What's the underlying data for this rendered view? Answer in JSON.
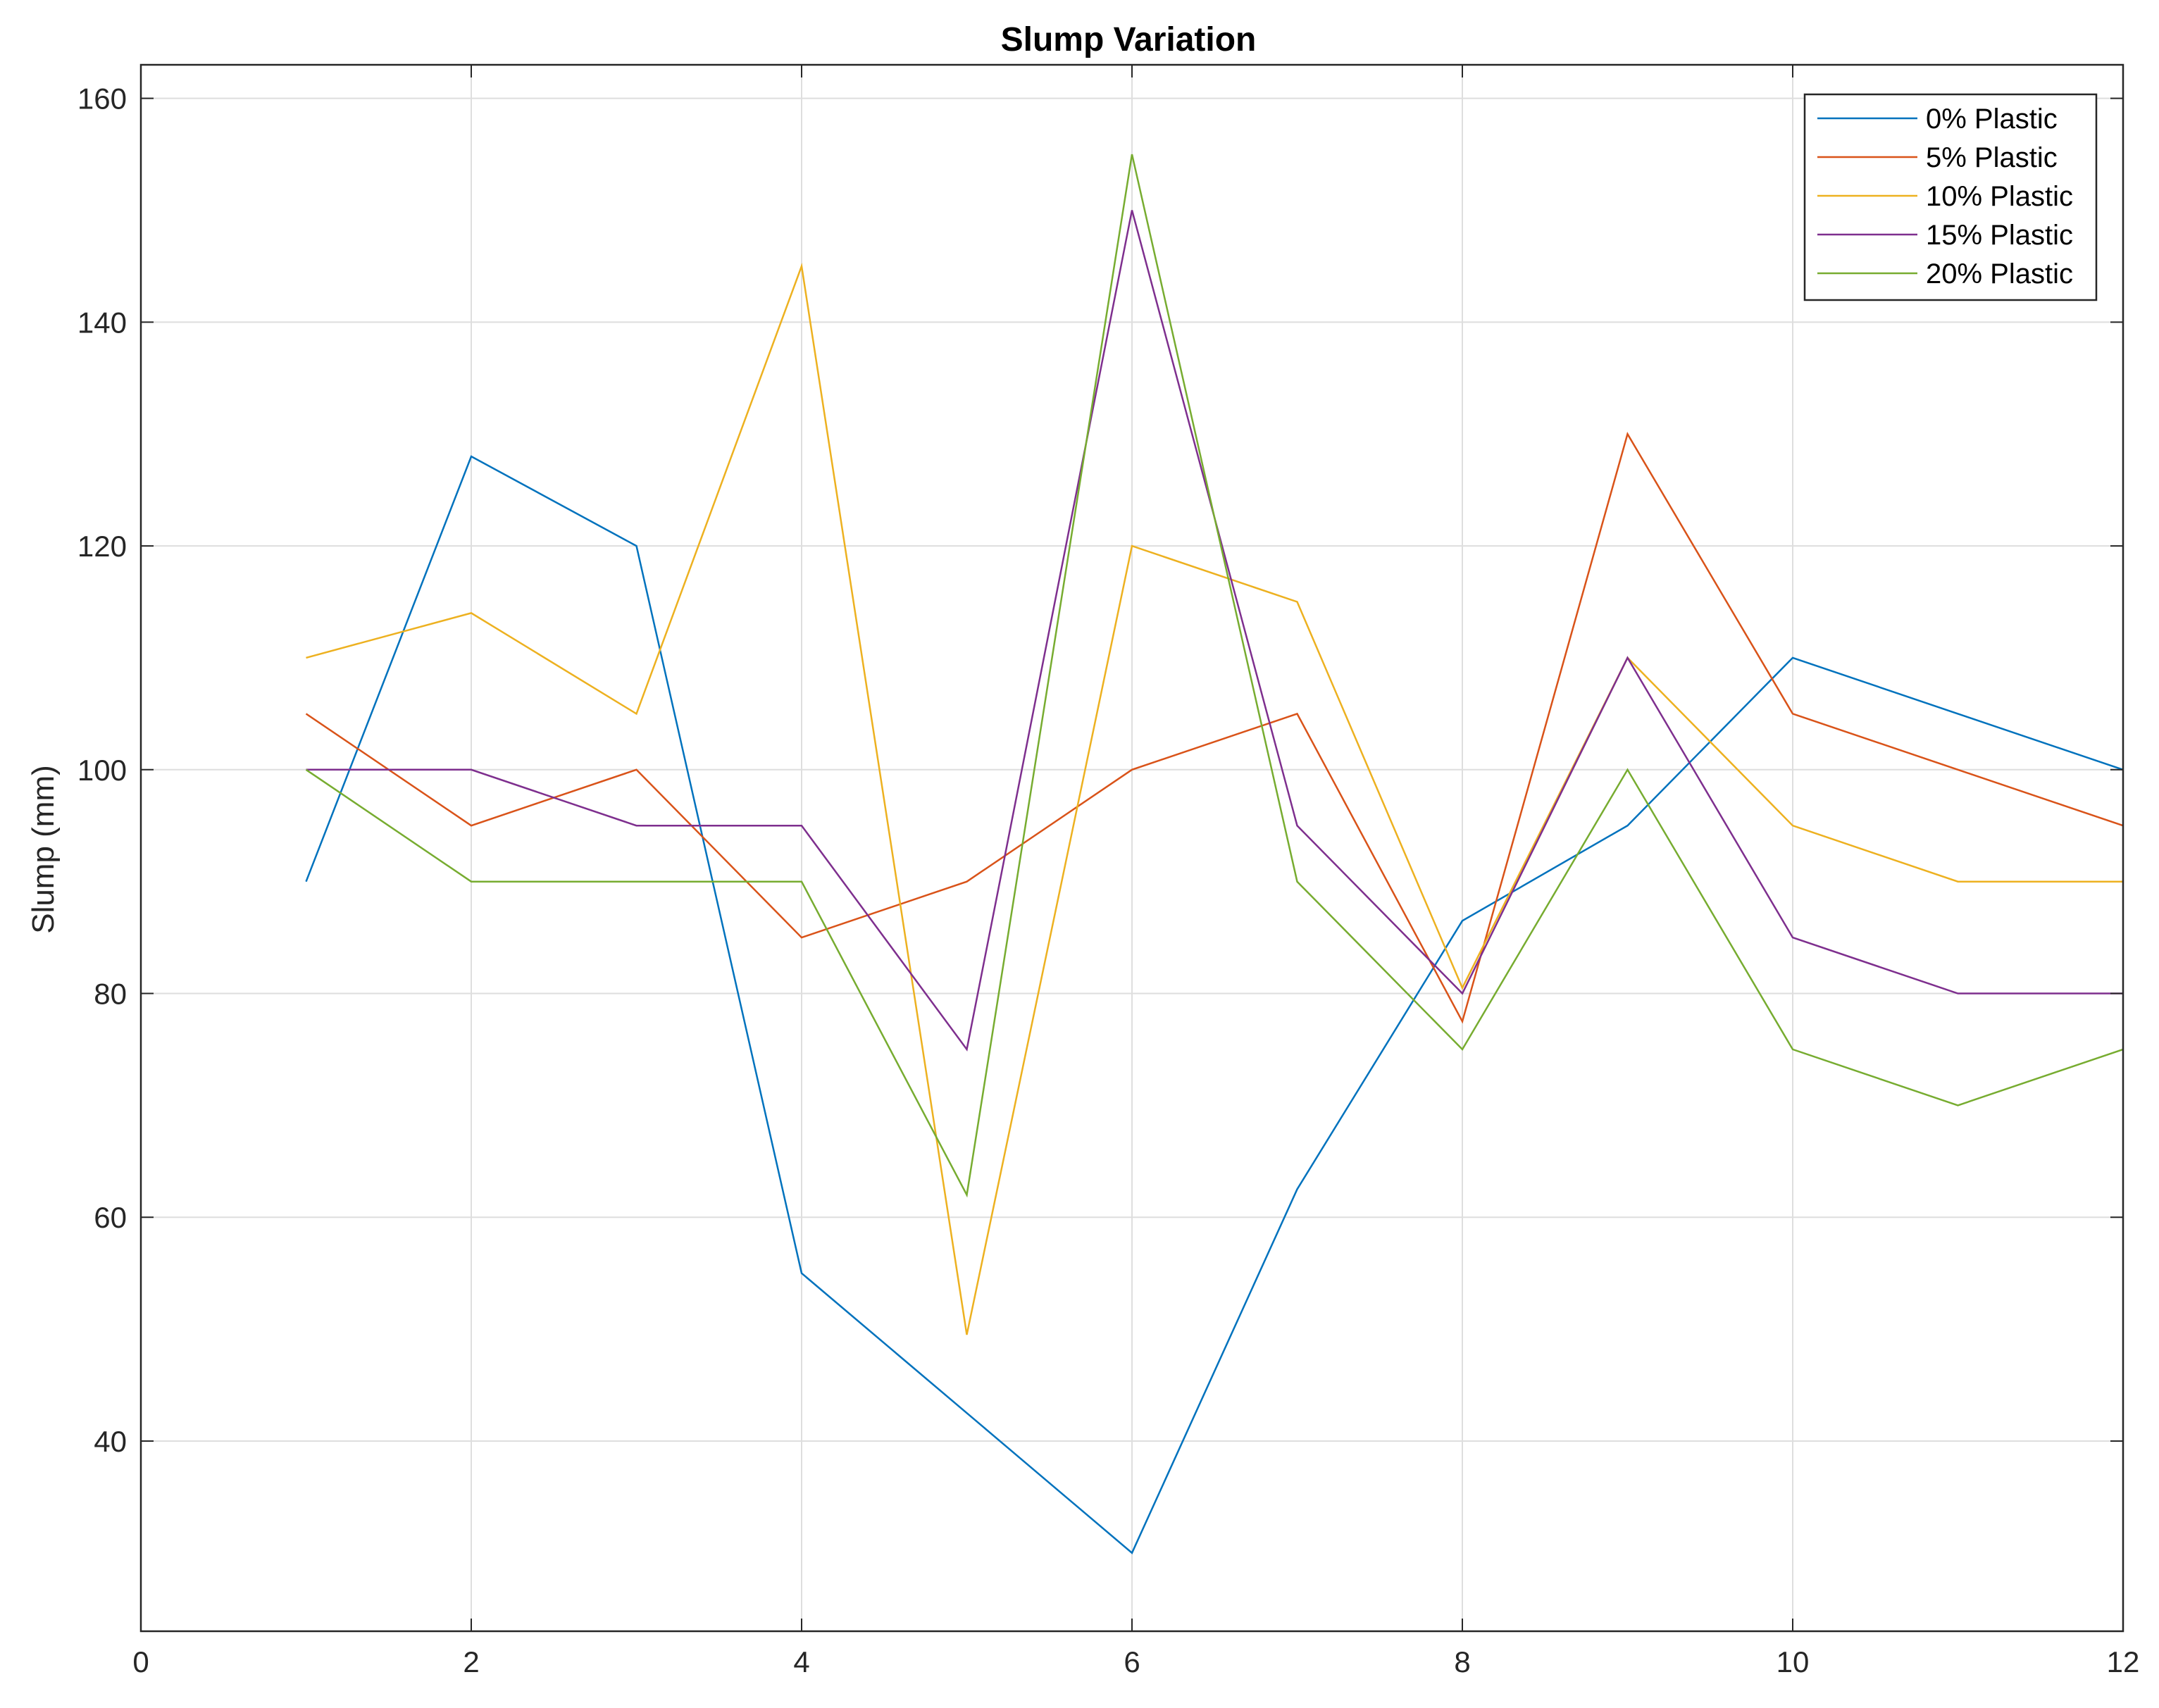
{
  "chart_data": {
    "type": "line",
    "title": "Slump Variation",
    "xlabel": "",
    "ylabel": "Slump (mm)",
    "xlim": [
      0,
      12
    ],
    "ylim": [
      23,
      163
    ],
    "xticks": [
      0,
      2,
      4,
      6,
      8,
      10,
      12
    ],
    "yticks": [
      40,
      60,
      80,
      100,
      120,
      140,
      160
    ],
    "grid": true,
    "legend_position": "top-right",
    "x": [
      1,
      2,
      3,
      4,
      5,
      6,
      7,
      8,
      9,
      10,
      11,
      12
    ],
    "series": [
      {
        "name": "0% Plastic",
        "color": "#0072BD",
        "values": [
          90,
          128,
          120,
          55,
          42.5,
          30,
          62.5,
          86.5,
          95,
          110,
          105,
          100
        ]
      },
      {
        "name": "5% Plastic",
        "color": "#D95319",
        "values": [
          105,
          95,
          100,
          85,
          90,
          100,
          105,
          77.5,
          130,
          105,
          100,
          95
        ]
      },
      {
        "name": "10% Plastic",
        "color": "#EDB120",
        "values": [
          110,
          114,
          105,
          145,
          49.5,
          120,
          115,
          80.5,
          110,
          95,
          90,
          90
        ]
      },
      {
        "name": "15% Plastic",
        "color": "#7E2F8E",
        "values": [
          100,
          100,
          95,
          95,
          75,
          150,
          95,
          80,
          110,
          85,
          80,
          80
        ]
      },
      {
        "name": "20% Plastic",
        "color": "#77AC30",
        "values": [
          100,
          90,
          90,
          90,
          62,
          155,
          90,
          75,
          100,
          75,
          70,
          75
        ]
      }
    ]
  }
}
